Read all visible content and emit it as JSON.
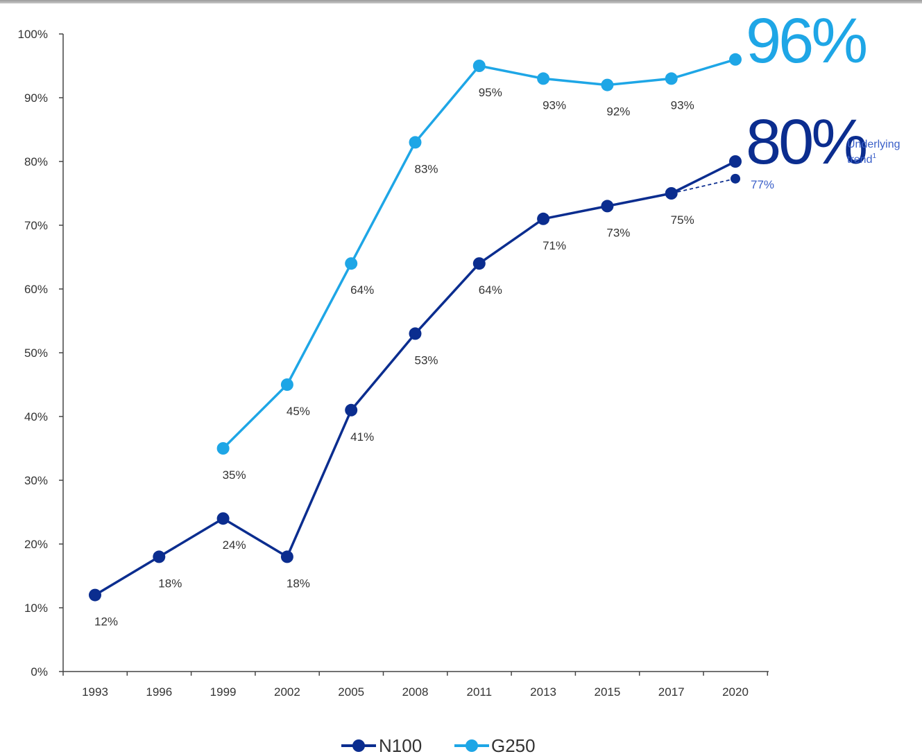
{
  "colors": {
    "n100": "#0b2d8f",
    "g250": "#1ea6e6",
    "trend": "#3a5fc8",
    "axis": "#444444"
  },
  "chart_data": {
    "type": "line",
    "categories": [
      "1993",
      "1996",
      "1999",
      "2002",
      "2005",
      "2008",
      "2011",
      "2013",
      "2015",
      "2017",
      "2020"
    ],
    "ylim": [
      0,
      100
    ],
    "yticks": [
      "0%",
      "10%",
      "20%",
      "30%",
      "40%",
      "50%",
      "60%",
      "70%",
      "80%",
      "90%",
      "100%"
    ],
    "legend_position": "bottom",
    "grid": false,
    "series": [
      {
        "name": "N100",
        "values": [
          12,
          18,
          24,
          18,
          41,
          53,
          64,
          71,
          73,
          75,
          80
        ],
        "labels": [
          "12%",
          "18%",
          "24%",
          "18%",
          "41%",
          "53%",
          "64%",
          "71%",
          "73%",
          "75%",
          ""
        ]
      },
      {
        "name": "G250",
        "values": [
          null,
          null,
          35,
          45,
          64,
          83,
          95,
          93,
          92,
          93,
          96
        ],
        "labels": [
          "",
          "",
          "35%",
          "45%",
          "64%",
          "83%",
          "95%",
          "93%",
          "92%",
          "93%",
          ""
        ]
      }
    ],
    "trend": {
      "from_index": 9,
      "value": 77.3,
      "label": "77%",
      "note_line1": "Underlying",
      "note_line2": "trend",
      "note_sup": "1"
    },
    "callouts": {
      "g250": "96%",
      "n100": "80%"
    }
  }
}
